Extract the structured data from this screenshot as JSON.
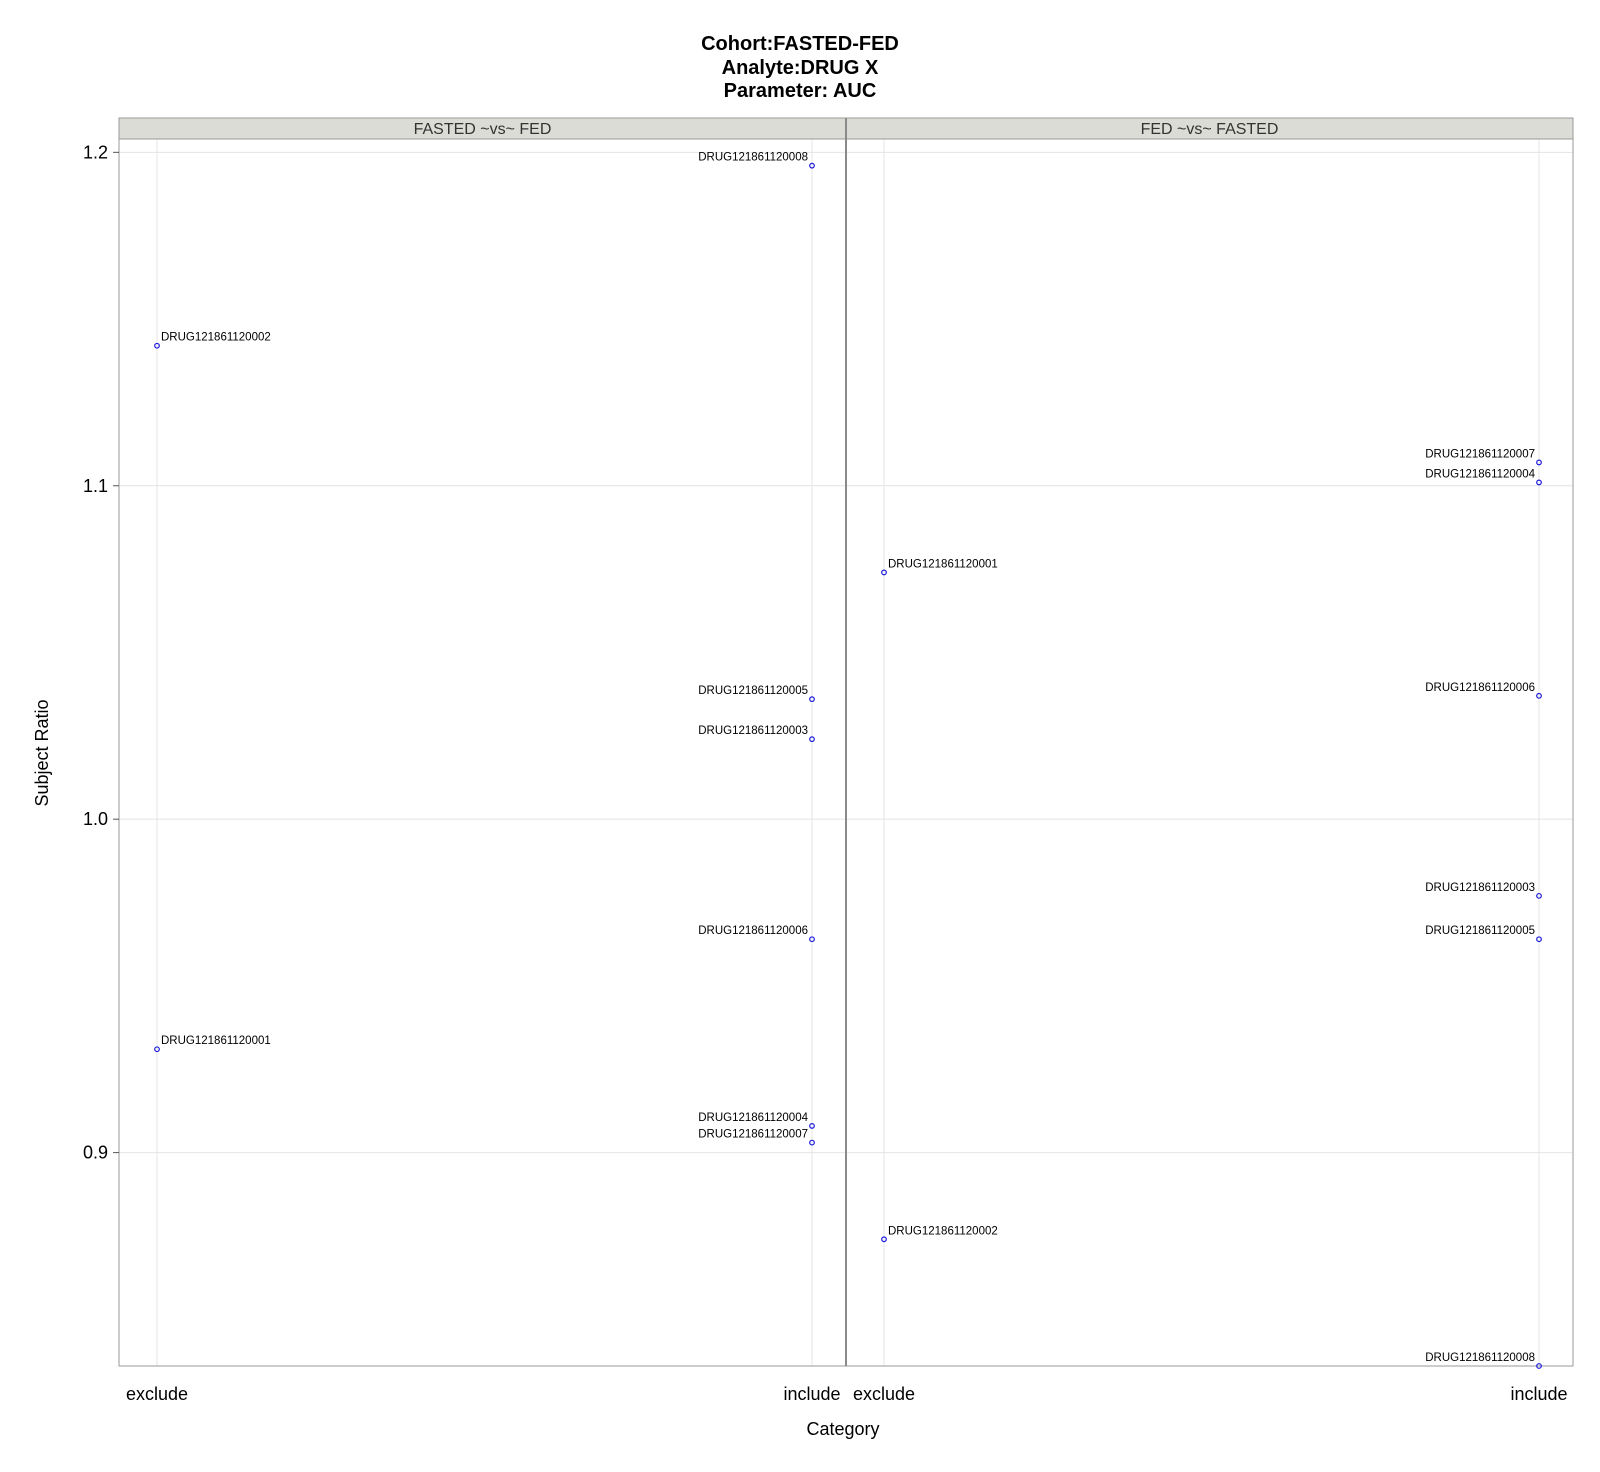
{
  "colors": {
    "marker": "#1a1adb",
    "strip_fill": "#dcdcd6",
    "grid": "#e4e4e4",
    "frame": "#9a9a9a",
    "divider": "#8a8a8a"
  },
  "chart_data": {
    "type": "scatter",
    "title_lines": [
      "Cohort:FASTED-FED",
      "Analyte:DRUG X",
      "Parameter: AUC"
    ],
    "xlabel": "Category",
    "ylabel": "Subject Ratio",
    "ylim": [
      0.836,
      1.204
    ],
    "yticks": [
      "0.9",
      "1.0",
      "1.1",
      "1.2"
    ],
    "categories": [
      "exclude",
      "include"
    ],
    "grid": true,
    "panels": [
      {
        "name": "FASTED ~vs~ FED",
        "points": [
          {
            "category": "exclude",
            "label": "DRUG121861120002",
            "y": 1.142
          },
          {
            "category": "exclude",
            "label": "DRUG121861120001",
            "y": 0.931
          },
          {
            "category": "include",
            "label": "DRUG121861120008",
            "y": 1.196
          },
          {
            "category": "include",
            "label": "DRUG121861120005",
            "y": 1.036
          },
          {
            "category": "include",
            "label": "DRUG121861120003",
            "y": 1.024
          },
          {
            "category": "include",
            "label": "DRUG121861120006",
            "y": 0.964
          },
          {
            "category": "include",
            "label": "DRUG121861120004",
            "y": 0.908
          },
          {
            "category": "include",
            "label": "DRUG121861120007",
            "y": 0.903
          }
        ]
      },
      {
        "name": "FED ~vs~ FASTED",
        "points": [
          {
            "category": "exclude",
            "label": "DRUG121861120001",
            "y": 1.074
          },
          {
            "category": "exclude",
            "label": "DRUG121861120002",
            "y": 0.874
          },
          {
            "category": "include",
            "label": "DRUG121861120007",
            "y": 1.107
          },
          {
            "category": "include",
            "label": "DRUG121861120004",
            "y": 1.101
          },
          {
            "category": "include",
            "label": "DRUG121861120006",
            "y": 1.037
          },
          {
            "category": "include",
            "label": "DRUG121861120003",
            "y": 0.977
          },
          {
            "category": "include",
            "label": "DRUG121861120005",
            "y": 0.964
          },
          {
            "category": "include",
            "label": "DRUG121861120008",
            "y": 0.836
          }
        ]
      }
    ]
  }
}
